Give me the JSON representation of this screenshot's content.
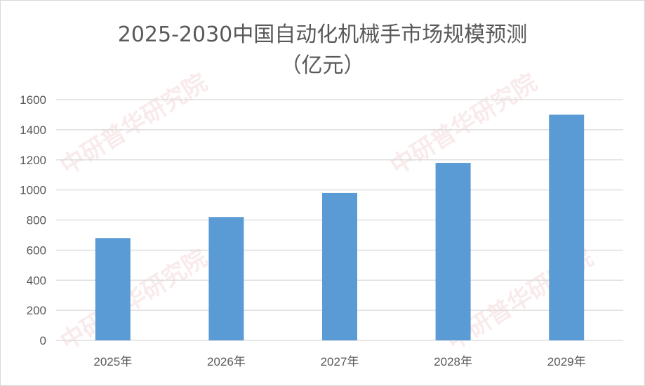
{
  "chart_data": {
    "type": "bar",
    "title_line1": "2025-2030中国自动化机械手市场规模预测",
    "title_line2": "（亿元）",
    "categories": [
      "2025年",
      "2026年",
      "2027年",
      "2028年",
      "2029年"
    ],
    "values": [
      680,
      820,
      980,
      1180,
      1500
    ],
    "ylim": [
      0,
      1600
    ],
    "yticks": [
      0,
      200,
      400,
      600,
      800,
      1000,
      1200,
      1400,
      1600
    ],
    "grid": true,
    "bar_color": "#5b9bd5",
    "watermark": "CIRN 中研普华研究院 www.ChinaIRN.com"
  }
}
